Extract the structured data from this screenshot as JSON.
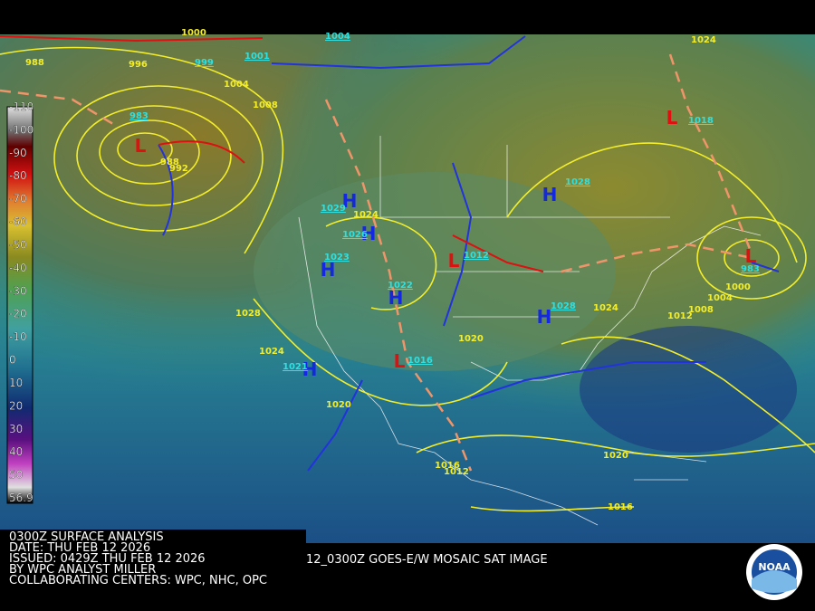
{
  "color_scale": {
    "labels": [
      "-110",
      "-100",
      "-90",
      "-80",
      "-70",
      "-60",
      "-50",
      "-40",
      "-30",
      "-20",
      "-10",
      "0",
      "10",
      "20",
      "30",
      "40",
      "50",
      "56.9"
    ]
  },
  "pressure_centers": [
    {
      "symbol": "L",
      "pressure": "983"
    },
    {
      "symbol": "H",
      "pressure": "1029"
    },
    {
      "symbol": "H",
      "pressure": "1026"
    },
    {
      "symbol": "H",
      "pressure": "1023"
    },
    {
      "symbol": "H",
      "pressure": "1028"
    },
    {
      "symbol": "L",
      "pressure": "1018"
    },
    {
      "symbol": "L",
      "pressure": "983"
    },
    {
      "symbol": "H",
      "pressure": "1028"
    },
    {
      "symbol": "H",
      "pressure": "1021"
    },
    {
      "symbol": "L",
      "pressure": "1012"
    },
    {
      "symbol": "L",
      "pressure": "1016"
    },
    {
      "symbol": "H",
      "pressure": "1022"
    }
  ],
  "isobar_labels": [
    "1000",
    "996",
    "988",
    "1004",
    "1008",
    "992",
    "988",
    "1024",
    "1028",
    "1024",
    "1020",
    "1020",
    "1024",
    "1008",
    "1004",
    "1000",
    "1012",
    "1024",
    "1020",
    "1016",
    "1012",
    "1016"
  ],
  "front_labels": [
    "1004",
    "1001",
    "999"
  ],
  "footer": {
    "lines": [
      "0300Z SURFACE ANALYSIS",
      "DATE: THU FEB 12 2026",
      "ISSUED: 0429Z THU FEB 12 2026",
      "BY WPC ANALYST MILLER",
      "COLLABORATING CENTERS: WPC, NHC, OPC"
    ],
    "image_caption": "12_0300Z GOES-E/W MOSAIC SAT IMAGE",
    "logo": "NOAA"
  }
}
